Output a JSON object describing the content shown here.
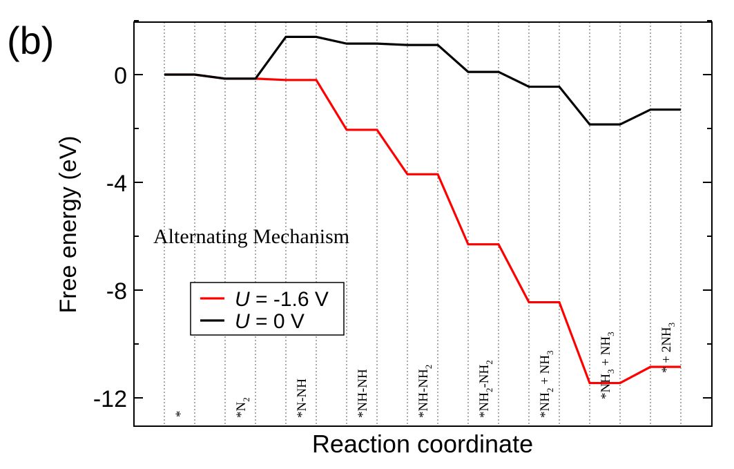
{
  "panel_label": "(b)",
  "chart_data": {
    "type": "line",
    "xlabel": "Reaction coordinate",
    "ylabel": "Free energy (eV)",
    "ylim": [
      -13,
      2
    ],
    "yticks": [
      0,
      -4,
      -8,
      -12
    ],
    "ytick_labels": [
      "0",
      "-4",
      "-8",
      "-12"
    ],
    "annotation": "Alternating Mechanism",
    "states": [
      {
        "base": "*",
        "sub": []
      },
      {
        "base": "*N",
        "sub": [
          "2"
        ]
      },
      {
        "base": "*N-NH",
        "sub": []
      },
      {
        "base": "*NH-NH",
        "sub": []
      },
      {
        "base": "*NH-NH",
        "sub": [
          "2"
        ]
      },
      {
        "base": "*NH",
        "sub": [
          "2",
          "-NH",
          "2"
        ]
      },
      {
        "base": "*NH",
        "sub": [
          "2",
          " + NH",
          "3"
        ]
      },
      {
        "base": "*NH",
        "sub": [
          "3",
          " + NH",
          "3"
        ]
      },
      {
        "base": "* + 2NH",
        "sub": [
          "3"
        ]
      }
    ],
    "legend": {
      "placement": "lower-left",
      "entries": [
        {
          "var": "U",
          "text": " = -1.6 V"
        },
        {
          "var": "U",
          "text": " = 0 V"
        }
      ]
    },
    "series": [
      {
        "color": "#ff0000",
        "values": [
          0.0,
          -0.15,
          -0.2,
          -2.05,
          -3.7,
          -6.3,
          -8.45,
          -11.45,
          -10.85
        ]
      },
      {
        "color": "#000000",
        "values": [
          0.0,
          -0.15,
          1.4,
          1.15,
          1.1,
          0.1,
          -0.45,
          -1.85,
          -1.3
        ]
      }
    ]
  }
}
